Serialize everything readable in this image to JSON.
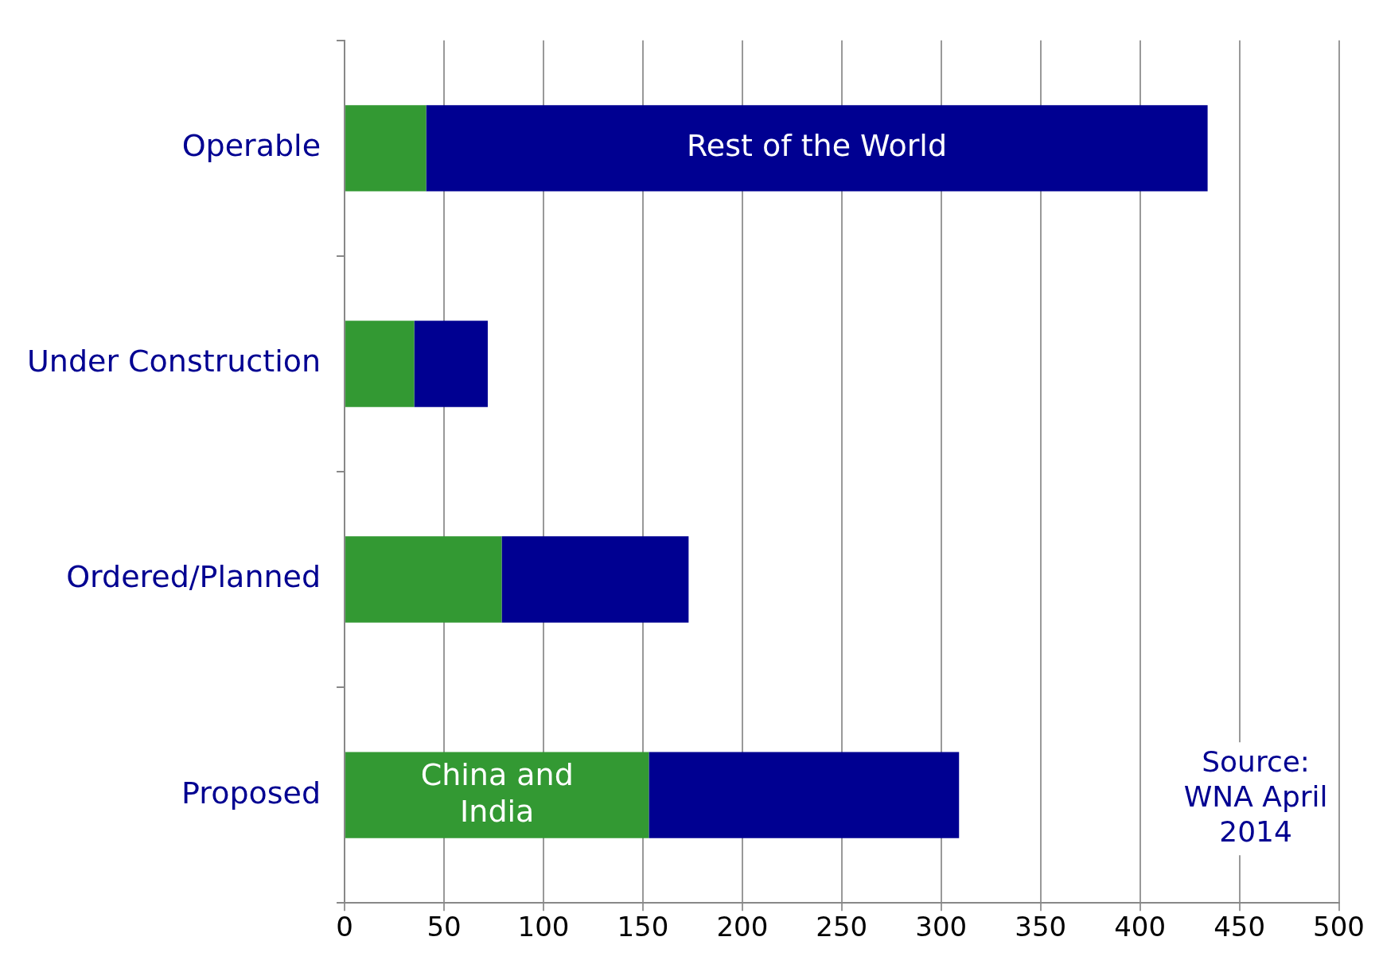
{
  "chart_data": {
    "type": "bar",
    "orientation": "horizontal",
    "stacked": true,
    "categories": [
      "Operable",
      "Under Construction",
      "Ordered/Planned",
      "Proposed"
    ],
    "series": [
      {
        "name": "China and India",
        "color": "#339933",
        "values": [
          41,
          35,
          79,
          153
        ]
      },
      {
        "name": "Rest of the World",
        "color": "#000091",
        "values": [
          393,
          37,
          94,
          156
        ]
      }
    ],
    "xlim": [
      0,
      500
    ],
    "xticks": [
      0,
      50,
      100,
      150,
      200,
      250,
      300,
      350,
      400,
      450,
      500
    ],
    "grid": "x",
    "legend": false,
    "annotations": [
      "Source: WNA April 2014"
    ]
  }
}
